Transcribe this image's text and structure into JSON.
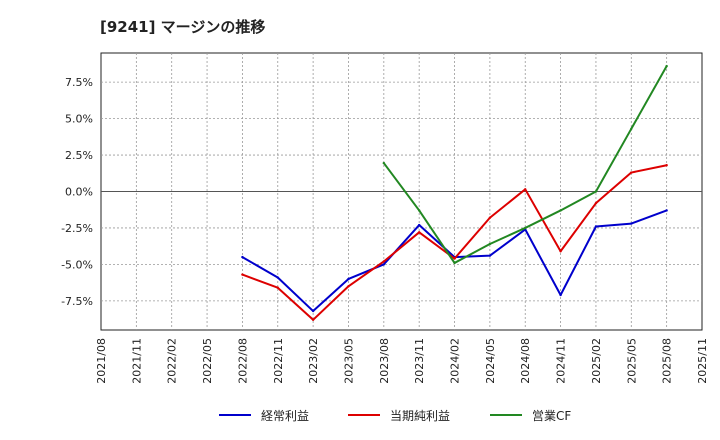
{
  "chart_data": {
    "type": "line",
    "title": "[9241]  マージンの推移",
    "x": [
      "2021/08",
      "2021/11",
      "2022/02",
      "2022/05",
      "2022/08",
      "2022/11",
      "2023/02",
      "2023/05",
      "2023/08",
      "2023/11",
      "2024/02",
      "2024/05",
      "2024/08",
      "2024/11",
      "2025/02",
      "2025/05",
      "2025/08",
      "2025/11"
    ],
    "ylim": [
      -9.5,
      9.5
    ],
    "yticks": [
      -7.5,
      -5.0,
      -2.5,
      0.0,
      2.5,
      5.0,
      7.5
    ],
    "ytick_labels": [
      "-7.5%",
      "-5.0%",
      "-2.5%",
      "0.0%",
      "2.5%",
      "5.0%",
      "7.5%"
    ],
    "grid": true,
    "legend_position": "bottom",
    "series": [
      {
        "name": "経常利益",
        "color": "#0000cc",
        "values": [
          null,
          null,
          null,
          null,
          -4.5,
          -5.9,
          -8.2,
          -6.0,
          -5.0,
          -2.3,
          -4.5,
          -4.4,
          -2.6,
          -7.1,
          -2.4,
          -2.2,
          -1.3,
          null
        ]
      },
      {
        "name": "当期純利益",
        "color": "#dd0000",
        "values": [
          null,
          null,
          null,
          null,
          -5.7,
          -6.6,
          -8.8,
          -6.5,
          -4.8,
          -2.8,
          -4.6,
          -1.8,
          0.15,
          -4.1,
          -0.8,
          1.3,
          1.8,
          null
        ]
      },
      {
        "name": "営業CF",
        "color": "#228822",
        "values": [
          null,
          null,
          null,
          null,
          null,
          null,
          null,
          null,
          1.95,
          -1.3,
          -4.9,
          -3.6,
          -2.5,
          -1.3,
          0.0,
          4.3,
          8.6,
          null
        ]
      }
    ]
  }
}
